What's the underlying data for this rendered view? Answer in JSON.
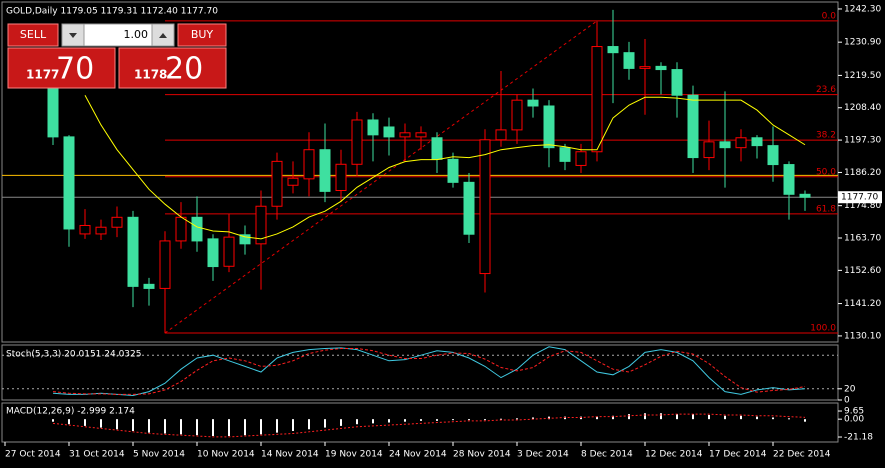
{
  "chart_data": [
    {
      "type": "candlestick",
      "header": "GOLD,Daily  1179.05 1179.31 1172.40 1177.70",
      "categories": [
        "27 Oct 2014",
        null,
        null,
        null,
        "31 Oct 2014",
        null,
        null,
        null,
        "5 Nov 2014",
        null,
        null,
        null,
        "10 Nov 2014",
        null,
        null,
        null,
        "14 Nov 2014",
        null,
        null,
        null,
        "19 Nov 2014",
        null,
        null,
        null,
        "24 Nov 2014",
        null,
        null,
        null,
        "28 Nov 2014",
        null,
        null,
        null,
        "3 Dec 2014",
        null,
        null,
        null,
        "8 Dec 2014",
        null,
        null,
        null,
        "12 Dec 2014",
        null,
        null,
        null,
        "17 Dec 2014",
        null,
        null,
        null,
        "22 Dec 2014",
        null,
        null
      ],
      "open": [
        null,
        null,
        null,
        1215.1,
        1198.4,
        1165.1,
        1165.1,
        1167.4,
        1170.8,
        1147.8,
        1146.4,
        1162.7,
        1170.8,
        1163.4,
        1154.0,
        1164.8,
        1161.7,
        1174.6,
        1181.8,
        1184.0,
        1194.0,
        1180.0,
        1189.0,
        1204.2,
        1201.8,
        1198.4,
        1198.4,
        1198.1,
        1190.7,
        1182.8,
        1151.5,
        1197.4,
        1200.8,
        1211.0,
        1209.0,
        1194.7,
        1188.6,
        1193.3,
        1229.4,
        1227.3,
        1221.9,
        1222.6,
        1221.5,
        1212.7,
        1191.3,
        1196.7,
        1194.7,
        1198.1,
        1195.4,
        1188.9,
        1178.7
      ],
      "high": [
        null,
        null,
        null,
        1217.0,
        1199.0,
        1173.6,
        1170.0,
        1174.5,
        1173.0,
        1150.0,
        1166.0,
        1176.0,
        1178.0,
        1165.0,
        1172.0,
        1168.0,
        1180.0,
        1193.0,
        1190.0,
        1200.0,
        1203.0,
        1194.0,
        1207.0,
        1206.5,
        1205.0,
        1203.0,
        1202.0,
        1200.0,
        1193.0,
        1186.0,
        1201.0,
        1221.0,
        1213.0,
        1215.0,
        1211.0,
        1196.0,
        1196.0,
        1238.0,
        1242.0,
        1231.0,
        1232.0,
        1224.0,
        1224.0,
        1216.0,
        1204.0,
        1214.0,
        1201.0,
        1199.0,
        1202.0,
        1190.0,
        1180.0
      ],
      "low": [
        null,
        null,
        null,
        1195.6,
        1160.7,
        1163.4,
        1163.0,
        1164.0,
        1140.0,
        1140.5,
        1131.0,
        1160.0,
        1159.0,
        1149.0,
        1152.0,
        1158.0,
        1146.0,
        1170.0,
        1179.0,
        1178.0,
        1176.0,
        1176.0,
        1185.0,
        1190.0,
        1192.0,
        1190.0,
        1194.0,
        1186.0,
        1181.0,
        1162.0,
        1145.0,
        1195.0,
        1196.0,
        1205.0,
        1188.0,
        1187.0,
        1186.0,
        1190.0,
        1210.0,
        1218.0,
        1206.0,
        1213.0,
        1205.0,
        1186.0,
        1187.0,
        1181.0,
        1190.0,
        1191.0,
        1183.0,
        1170.0,
        1173.0
      ],
      "close": [
        null,
        null,
        null,
        1198.4,
        1166.8,
        1168.0,
        1167.4,
        1170.8,
        1147.1,
        1146.4,
        1162.7,
        1170.8,
        1162.7,
        1153.9,
        1164.0,
        1161.7,
        1174.6,
        1190.0,
        1184.2,
        1194.0,
        1179.7,
        1189.0,
        1204.2,
        1199.1,
        1198.4,
        1199.8,
        1199.8,
        1190.7,
        1182.8,
        1165.0,
        1197.4,
        1200.8,
        1211.0,
        1209.0,
        1194.7,
        1190.0,
        1193.3,
        1229.4,
        1227.3,
        1221.9,
        1222.5,
        1221.5,
        1212.7,
        1191.3,
        1196.7,
        1194.7,
        1198.1,
        1195.4,
        1188.9,
        1178.7,
        1177.7
      ],
      "ma": [
        null,
        null,
        null,
        null,
        null,
        1212.7,
        1202.5,
        1194.0,
        1187.2,
        1180.4,
        1175.3,
        1170.9,
        1167.5,
        1166.1,
        1165.8,
        1164.1,
        1163.4,
        1165.1,
        1167.5,
        1170.9,
        1172.9,
        1176.3,
        1181.1,
        1184.5,
        1187.9,
        1189.9,
        1190.6,
        1190.6,
        1191.6,
        1191.3,
        1192.3,
        1194.0,
        1194.7,
        1195.4,
        1195.7,
        1195.0,
        1194.0,
        1194.0,
        1204.9,
        1209.3,
        1212.0,
        1212.0,
        1211.7,
        1211.0,
        1211.0,
        1211.0,
        1211.0,
        1207.6,
        1202.5,
        1199.1,
        1195.7
      ],
      "bull_color": "#ff0000",
      "bear_color": "#3ee0a0",
      "ma_color": "#ffff00",
      "ylim": [
        1128.7,
        1244.0
      ],
      "yticks": [
        {
          "value": 1242.3,
          "label": "1242.30"
        },
        {
          "value": 1230.9,
          "label": "1230.90"
        },
        {
          "value": 1219.5,
          "label": "1219.50"
        },
        {
          "value": 1208.4,
          "label": "1208.40"
        },
        {
          "value": 1197.3,
          "label": "1197.30"
        },
        {
          "value": 1186.2,
          "label": "1186.20"
        },
        {
          "value": 1174.8,
          "label": "1174.80"
        },
        {
          "value": 1163.7,
          "label": "1163.70"
        },
        {
          "value": 1152.6,
          "label": "1152.60"
        },
        {
          "value": 1141.2,
          "label": "1141.20"
        },
        {
          "value": 1130.1,
          "label": "1130.10"
        }
      ],
      "fib_levels": [
        {
          "label": "0.0",
          "value": 1238.2
        },
        {
          "label": "23.6",
          "value": 1212.9
        },
        {
          "label": "38.2",
          "value": 1197.3
        },
        {
          "label": "50.0",
          "value": 1184.7
        },
        {
          "label": "61.8",
          "value": 1172.0
        },
        {
          "label": "100.0",
          "value": 1131.1
        }
      ],
      "hline": {
        "value": 1185.2,
        "color": "#ffc000"
      },
      "last_price": {
        "value": 1177.7,
        "label": "1177.70"
      }
    },
    {
      "type": "stoch",
      "label": "Stoch(5,3,3) 20.0151 24.0325",
      "ylim": [
        0,
        100
      ],
      "yticks": [
        20,
        0
      ],
      "levels": [
        80,
        20
      ],
      "series": [
        {
          "name": "main",
          "color": "#40c8e0",
          "values": [
            null,
            null,
            null,
            12,
            10,
            10,
            12,
            10,
            8,
            15,
            30,
            55,
            75,
            80,
            70,
            60,
            50,
            75,
            85,
            90,
            92,
            93,
            90,
            80,
            70,
            72,
            80,
            88,
            85,
            75,
            60,
            40,
            55,
            80,
            95,
            90,
            70,
            50,
            45,
            60,
            85,
            90,
            85,
            70,
            40,
            15,
            10,
            18,
            22,
            18,
            20.0151
          ]
        },
        {
          "name": "signal",
          "color": "#ff2020",
          "values": [
            null,
            null,
            null,
            15,
            12,
            11,
            11,
            10,
            10,
            11,
            18,
            33,
            53,
            70,
            75,
            70,
            60,
            62,
            70,
            83,
            89,
            92,
            92,
            88,
            80,
            74,
            74,
            80,
            84,
            83,
            73,
            58,
            52,
            58,
            77,
            88,
            85,
            70,
            55,
            50,
            63,
            78,
            87,
            82,
            65,
            42,
            22,
            14,
            17,
            19,
            24.0325
          ]
        }
      ]
    },
    {
      "type": "macd",
      "label": "MACD(12,26,9) -2.999 2.174",
      "ylim": [
        -25.9,
        16.8
      ],
      "yticks": [
        9.65,
        {
          "value": 0,
          "label": "0.00"
        },
        -21.18
      ],
      "series": [
        {
          "name": "macd",
          "color": "#ffffff",
          "values": [
            null,
            null,
            null,
            -3,
            -6,
            -8,
            -10,
            -12,
            -14,
            -16,
            -17,
            -18,
            -19,
            -20,
            -20,
            -19,
            -18,
            -16,
            -14,
            -12,
            -10,
            -8,
            -6,
            -5,
            -4,
            -3,
            -2,
            -2,
            -1,
            -1,
            -1,
            0.5,
            1,
            2,
            3,
            3,
            3,
            3,
            4,
            6,
            7,
            7,
            6,
            6,
            5,
            4,
            4,
            3,
            2,
            1,
            -2.999
          ]
        },
        {
          "name": "signal",
          "color": "#ff2020",
          "values": [
            null,
            null,
            null,
            -5,
            -7,
            -9,
            -11,
            -13,
            -15,
            -17,
            -18,
            -19,
            -20,
            -21,
            -21,
            -20,
            -19,
            -18,
            -17,
            -15,
            -13,
            -11,
            -9,
            -8,
            -7,
            -6,
            -5,
            -4,
            -3,
            -2,
            -2,
            -1,
            -1,
            0,
            1,
            2,
            2,
            3,
            3,
            4,
            5,
            5,
            6,
            6,
            6,
            5,
            5,
            4,
            4,
            3,
            2.174
          ]
        }
      ]
    }
  ],
  "trade_panel": {
    "sell": "SELL",
    "buy": "BUY",
    "lot": "1.00",
    "sell_main": "1177",
    "sell_pips": "70",
    "buy_main": "1178",
    "buy_pips": "20"
  }
}
